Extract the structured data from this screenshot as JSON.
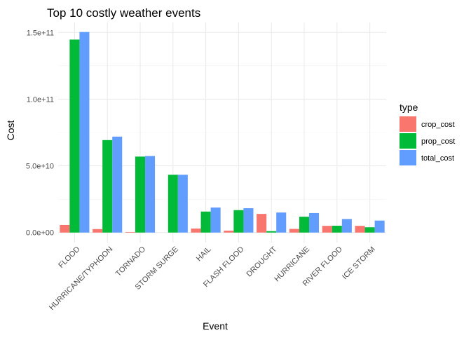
{
  "chart_data": {
    "type": "bar",
    "title": "Top 10 costly weather events",
    "xlabel": "Event",
    "ylabel": "Cost",
    "categories": [
      "FLOOD",
      "HURRICANE/TYPHOON",
      "TORNADO",
      "STORM SURGE",
      "HAIL",
      "FLASH FLOOD",
      "DROUGHT",
      "HURRICANE",
      "RIVER FLOOD",
      "ICE STORM"
    ],
    "series": [
      {
        "name": "crop_cost",
        "color": "#F8766D",
        "values": [
          5660000000.0,
          2610000000.0,
          410000000.0,
          0.0,
          3000000000.0,
          1420000000.0,
          13970000000.0,
          2740000000.0,
          5030000000.0,
          5020000000.0
        ]
      },
      {
        "name": "prop_cost",
        "color": "#00BA38",
        "values": [
          144660000000.0,
          69310000000.0,
          56940000000.0,
          43320000000.0,
          15730000000.0,
          16820000000.0,
          1050000000.0,
          11870000000.0,
          5120000000.0,
          3940000000.0
        ]
      },
      {
        "name": "total_cost",
        "color": "#619CFF",
        "values": [
          150320000000.0,
          71910000000.0,
          57350000000.0,
          43320000000.0,
          18760000000.0,
          18240000000.0,
          15020000000.0,
          14610000000.0,
          10150000000.0,
          8970000000.0
        ]
      }
    ],
    "y_ticks": [
      {
        "value": 0,
        "label": "0.0e+00"
      },
      {
        "value": 50000000000,
        "label": "5.0e+10"
      },
      {
        "value": 100000000000,
        "label": "1.0e+11"
      },
      {
        "value": 150000000000,
        "label": "1.5e+11"
      }
    ],
    "ylim": [
      -7500000000,
      157500000000
    ],
    "legend": {
      "title": "type",
      "position": "right"
    },
    "grid": true,
    "theme": "minimal"
  }
}
